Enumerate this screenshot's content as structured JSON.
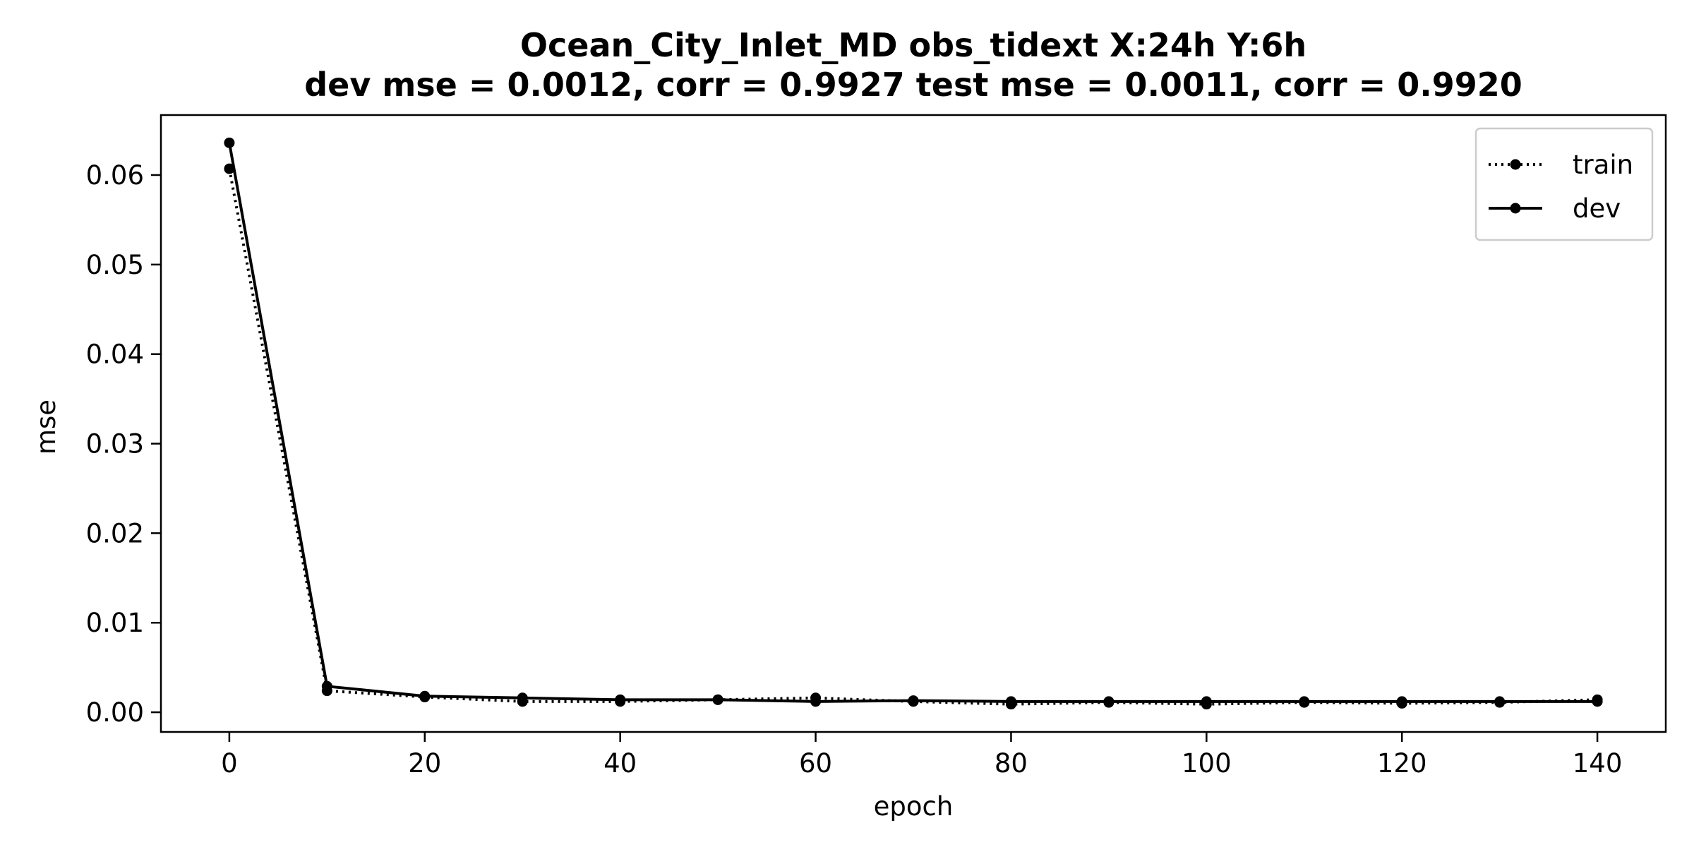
{
  "chart_data": {
    "type": "line",
    "title_line1": "Ocean_City_Inlet_MD   obs_tidext   X:24h   Y:6h",
    "title_line2": "dev mse = 0.0012, corr = 0.9927   test mse = 0.0011, corr = 0.9920",
    "xlabel": "epoch",
    "ylabel": "mse",
    "xlim": [
      -7,
      147
    ],
    "ylim": [
      -0.0022,
      0.0667
    ],
    "xticks": [
      0,
      20,
      40,
      60,
      80,
      100,
      120,
      140
    ],
    "xtick_labels": [
      "0",
      "20",
      "40",
      "60",
      "80",
      "100",
      "120",
      "140"
    ],
    "yticks": [
      0.0,
      0.01,
      0.02,
      0.03,
      0.04,
      0.05,
      0.06
    ],
    "ytick_labels": [
      "0.00",
      "0.01",
      "0.02",
      "0.03",
      "0.04",
      "0.05",
      "0.06"
    ],
    "grid": false,
    "legend_position": "top-right",
    "x": [
      0,
      10,
      20,
      30,
      40,
      50,
      60,
      70,
      80,
      90,
      100,
      110,
      120,
      130,
      140
    ],
    "series": [
      {
        "name": "train",
        "linestyle": "dotted",
        "color": "#000000",
        "values": [
          0.0607,
          0.0024,
          0.0017,
          0.0012,
          0.0012,
          0.0014,
          0.0016,
          0.0012,
          0.0009,
          0.0011,
          0.0009,
          0.0011,
          0.001,
          0.0011,
          0.0014
        ]
      },
      {
        "name": "dev",
        "linestyle": "solid",
        "color": "#000000",
        "values": [
          0.0636,
          0.0029,
          0.0018,
          0.0016,
          0.0014,
          0.0014,
          0.0012,
          0.0013,
          0.0012,
          0.0012,
          0.0012,
          0.0012,
          0.0012,
          0.0012,
          0.0012
        ]
      }
    ]
  }
}
